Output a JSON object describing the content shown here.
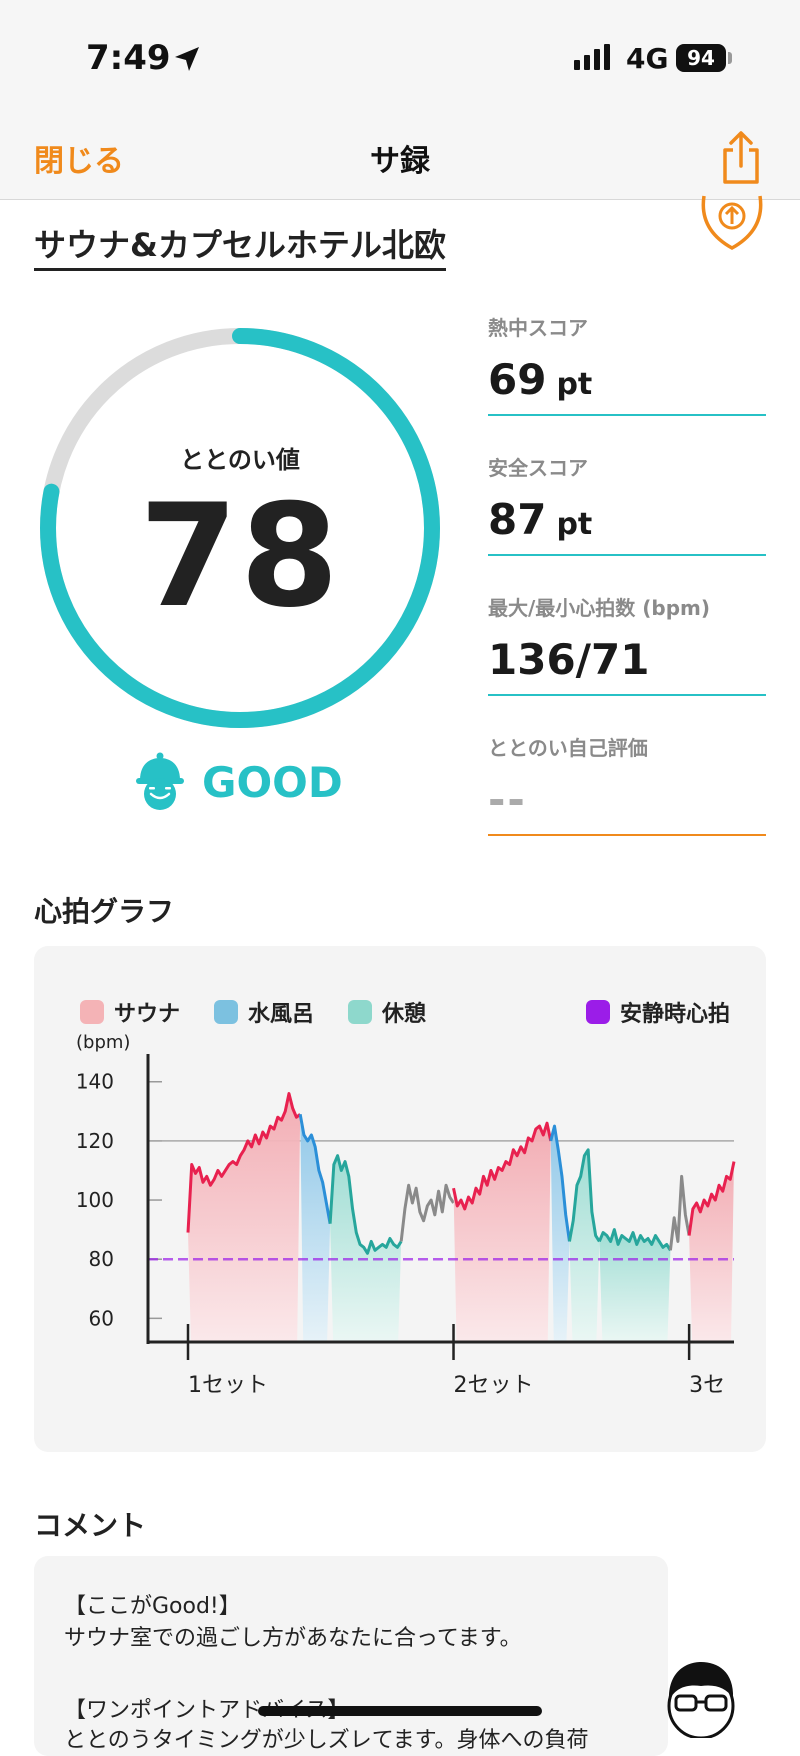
{
  "status_bar": {
    "time": "7:49",
    "network": "4G",
    "battery": "94"
  },
  "nav": {
    "close_label": "閉じる",
    "title": "サ録"
  },
  "facility_name": "サウナ&カプセルホテル北欧",
  "score": {
    "label": "ととのい値",
    "value": "78",
    "fraction": 0.78,
    "rating": "GOOD"
  },
  "stats": [
    {
      "label": "熱中スコア",
      "value": "69",
      "unit": "pt"
    },
    {
      "label": "安全スコア",
      "value": "87",
      "unit": "pt"
    },
    {
      "label": "最大/最小心拍数 (bpm)",
      "value": "136/71",
      "unit": ""
    },
    {
      "label": "ととのい自己評価",
      "value": "--",
      "unit": ""
    }
  ],
  "heart_section_title": "心拍グラフ",
  "comment_section_title": "コメント",
  "colors": {
    "accent": "#27c1c6",
    "orange": "#f08a1c",
    "sauna": "#e8214f",
    "cold": "#2b8fd8",
    "rest": "#27a69c",
    "resting_hr": "#9b1de8"
  },
  "chart_data": {
    "type": "line",
    "legend": [
      {
        "name": "サウナ",
        "color": "#f4b3b6"
      },
      {
        "name": "水風呂",
        "color": "#7cc1e0"
      },
      {
        "name": "休憩",
        "color": "#8ed8cc"
      },
      {
        "name": "安静時心拍",
        "color": "#9b1de8"
      }
    ],
    "y_unit": "(bpm)",
    "ylim": [
      52,
      146
    ],
    "yticks": [
      140,
      120,
      100,
      80,
      60
    ],
    "xticks": [
      "1セット",
      "2セット",
      "3セ"
    ],
    "resting_hr": 80,
    "reference_line": 120,
    "segments": [
      {
        "phase": "sauna",
        "values": [
          89,
          112,
          109,
          111,
          106,
          108,
          105,
          107,
          110,
          108,
          110,
          112,
          113,
          112,
          115,
          117,
          120,
          118,
          122,
          119,
          123,
          121,
          125,
          124,
          128,
          127,
          130,
          136,
          131,
          128,
          129
        ]
      },
      {
        "phase": "cold",
        "values": [
          129,
          122,
          120,
          122,
          118,
          110,
          106,
          99,
          92
        ]
      },
      {
        "phase": "rest",
        "values": [
          92,
          112,
          115,
          110,
          113,
          108,
          97,
          89,
          85,
          84,
          82,
          86,
          83,
          84,
          85,
          84,
          87,
          85,
          84,
          86
        ]
      },
      {
        "phase": "other",
        "values": [
          86,
          97,
          105,
          99,
          104,
          96,
          93,
          98,
          100,
          95,
          103,
          96,
          105,
          101,
          99
        ]
      },
      {
        "phase": "sauna",
        "values": [
          104,
          98,
          100,
          97,
          101,
          99,
          104,
          102,
          108,
          105,
          110,
          107,
          111,
          110,
          113,
          112,
          117,
          115,
          118,
          116,
          121,
          120,
          124,
          125,
          122,
          126,
          120
        ]
      },
      {
        "phase": "cold",
        "values": [
          120,
          125,
          117,
          108,
          95,
          86
        ]
      },
      {
        "phase": "rest",
        "values": [
          86,
          93,
          105,
          108,
          115,
          117,
          96,
          88,
          86
        ]
      },
      {
        "phase": "rest",
        "values": [
          86,
          89,
          88,
          86,
          90,
          85,
          88,
          87,
          86,
          89,
          85,
          88,
          86,
          87,
          85,
          88,
          86,
          84,
          85,
          83
        ]
      },
      {
        "phase": "other",
        "values": [
          83,
          94,
          86,
          108,
          95,
          88
        ]
      },
      {
        "phase": "sauna",
        "values": [
          88,
          97,
          99,
          96,
          100,
          98,
          102,
          100,
          105,
          103,
          108,
          107,
          113
        ]
      }
    ]
  },
  "comment": {
    "lines": [
      "【ここがGood!】",
      "サウナ室での過ごし方があなたに合ってます。",
      "",
      "【ワンポイントアドバイス】",
      "ととのうタイミングが少しズレてます。身体への負荷"
    ]
  }
}
